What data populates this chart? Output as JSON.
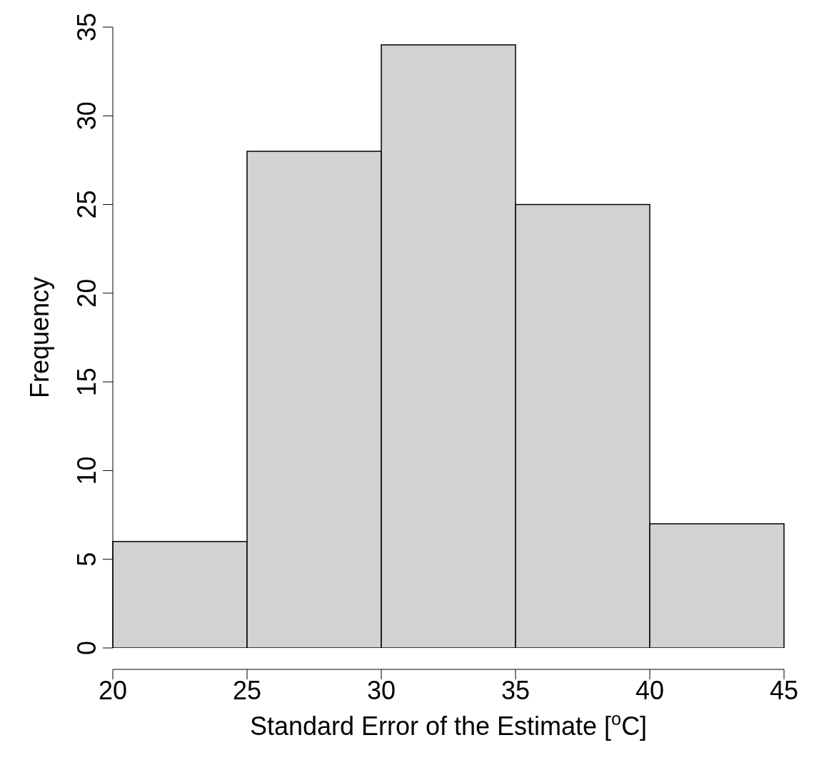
{
  "chart_data": {
    "type": "histogram",
    "xlabel": "Standard Error of the Estimate [$^{o}$C]",
    "ylabel": "Frequency",
    "bins": [
      20,
      25,
      30,
      35,
      40,
      45
    ],
    "values": [
      6,
      28,
      34,
      25,
      7
    ],
    "color": "#d1d2d4",
    "xlim": [
      20,
      45
    ],
    "xticks": [
      20,
      25,
      30,
      35,
      40,
      45
    ],
    "ylim": [
      0,
      35
    ],
    "yticks": [
      0,
      5,
      10,
      15,
      20,
      25,
      30,
      35
    ],
    "grid": false,
    "legend": false
  }
}
